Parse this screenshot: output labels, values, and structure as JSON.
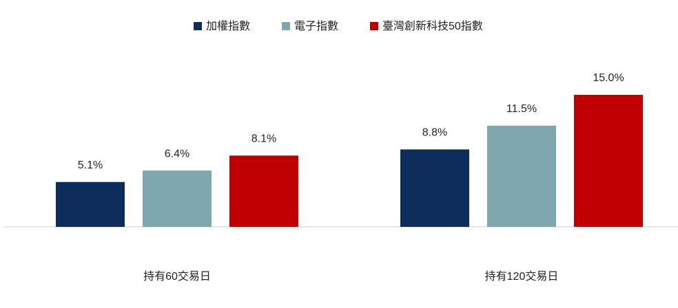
{
  "chart_data": {
    "type": "bar",
    "categories": [
      "持有60交易日",
      "持有120交易日"
    ],
    "series": [
      {
        "name": "加權指數",
        "color": "#0c2d5b",
        "values": [
          5.1,
          8.8
        ],
        "value_labels": [
          "5.1%",
          "8.8%"
        ]
      },
      {
        "name": "電子指數",
        "color": "#7ea8ad",
        "values": [
          6.4,
          11.5
        ],
        "value_labels": [
          "6.4%",
          "11.5%"
        ]
      },
      {
        "name": "臺灣創新科技50指數",
        "color": "#c00000",
        "values": [
          8.1,
          15.0
        ],
        "value_labels": [
          "8.1%",
          "15.0%"
        ]
      }
    ]
  }
}
